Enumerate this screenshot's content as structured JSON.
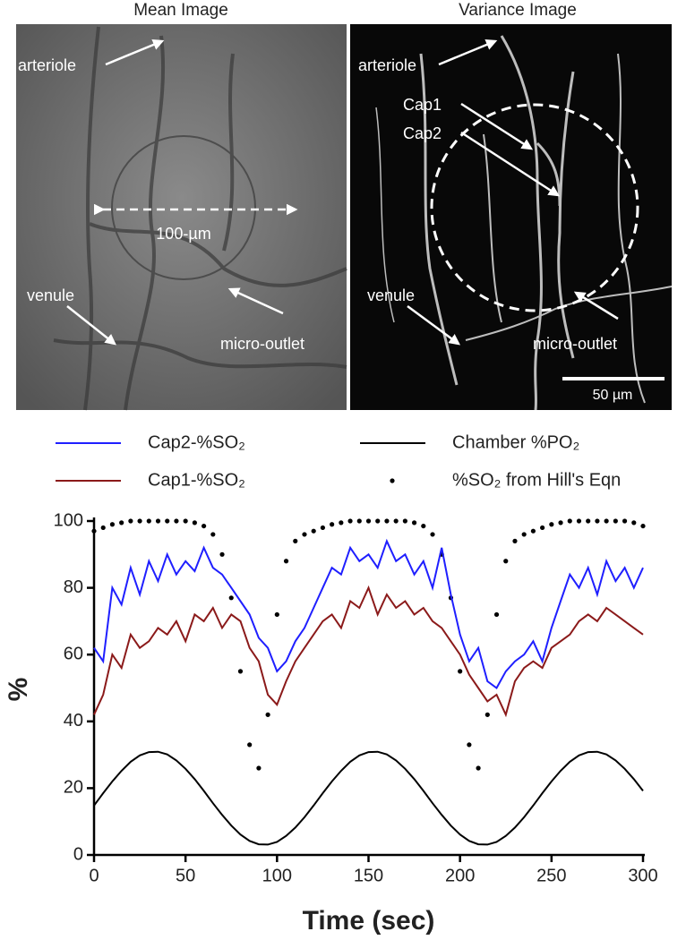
{
  "panels": [
    {
      "title": "Mean Image",
      "labels": [
        "arteriole",
        "100-µm",
        "venule",
        "micro-outlet"
      ]
    },
    {
      "title": "Variance Image",
      "labels": [
        "arteriole",
        "Cap1",
        "Cap2",
        "venule",
        "micro-outlet",
        "50 µm"
      ]
    }
  ],
  "chart_data": {
    "type": "line",
    "xlabel": "Time (sec)",
    "ylabel": "%",
    "xlim": [
      0,
      300
    ],
    "xticks": [
      0,
      50,
      100,
      150,
      200,
      250,
      300
    ],
    "ylim": [
      0,
      100
    ],
    "yticks": [
      0,
      20,
      40,
      60,
      80,
      100
    ],
    "x": [
      0,
      5,
      10,
      15,
      20,
      25,
      30,
      35,
      40,
      45,
      50,
      55,
      60,
      65,
      70,
      75,
      80,
      85,
      90,
      95,
      100,
      105,
      110,
      115,
      120,
      125,
      130,
      135,
      140,
      145,
      150,
      155,
      160,
      165,
      170,
      175,
      180,
      185,
      190,
      195,
      200,
      205,
      210,
      215,
      220,
      225,
      230,
      235,
      240,
      245,
      250,
      255,
      260,
      265,
      270,
      275,
      280,
      285,
      290,
      295,
      300
    ],
    "series": [
      {
        "name": "Cap2-%SO₂",
        "color": "#1f1fff",
        "style": "line",
        "values": [
          62,
          58,
          80,
          75,
          86,
          78,
          88,
          82,
          90,
          84,
          88,
          85,
          92,
          86,
          84,
          80,
          76,
          72,
          65,
          62,
          55,
          58,
          64,
          68,
          74,
          80,
          86,
          84,
          92,
          88,
          90,
          86,
          94,
          88,
          90,
          84,
          88,
          80,
          92,
          78,
          66,
          58,
          62,
          52,
          50,
          55,
          58,
          60,
          64,
          58,
          68,
          76,
          84,
          80,
          86,
          78,
          88,
          82,
          86,
          80,
          86
        ]
      },
      {
        "name": "Cap1-%SO₂",
        "color": "#8b1a1a",
        "style": "line",
        "values": [
          42,
          48,
          60,
          56,
          66,
          62,
          64,
          68,
          66,
          70,
          64,
          72,
          70,
          74,
          68,
          72,
          70,
          62,
          58,
          48,
          45,
          52,
          58,
          62,
          66,
          70,
          72,
          68,
          76,
          74,
          80,
          72,
          78,
          74,
          76,
          72,
          74,
          70,
          68,
          64,
          60,
          54,
          50,
          46,
          48,
          42,
          52,
          56,
          58,
          56,
          62,
          64,
          66,
          70,
          72,
          70,
          74,
          72,
          70,
          68,
          66
        ]
      },
      {
        "name": "Chamber %PO₂",
        "color": "#000000",
        "style": "line",
        "values": [
          14.8,
          18.5,
          22.0,
          25.2,
          27.9,
          29.8,
          30.8,
          30.9,
          30.1,
          28.3,
          25.8,
          22.7,
          19.2,
          15.5,
          12.0,
          8.8,
          6.1,
          4.2,
          3.2,
          3.1,
          3.9,
          5.7,
          8.2,
          11.3,
          14.8,
          18.5,
          22.0,
          25.2,
          27.9,
          29.8,
          30.8,
          30.9,
          30.1,
          28.3,
          25.8,
          22.7,
          19.2,
          15.5,
          12.0,
          8.8,
          6.1,
          4.2,
          3.2,
          3.1,
          3.9,
          5.7,
          8.2,
          11.3,
          14.8,
          18.5,
          22.0,
          25.2,
          27.9,
          29.8,
          30.8,
          30.9,
          30.1,
          28.3,
          25.8,
          22.7,
          19.2
        ]
      },
      {
        "name": "%SO₂ from Hill's Eqn",
        "color": "#000000",
        "style": "dots",
        "values": [
          97,
          98,
          99,
          99.5,
          100,
          100,
          100,
          100,
          100,
          100,
          100,
          99.5,
          98.5,
          96,
          90,
          77,
          55,
          33,
          26,
          42,
          72,
          88,
          94,
          96,
          97,
          98,
          99,
          99.5,
          100,
          100,
          100,
          100,
          100,
          100,
          100,
          99.5,
          98.5,
          96,
          90,
          77,
          55,
          33,
          26,
          42,
          72,
          88,
          94,
          96,
          97,
          98,
          99,
          99.5,
          100,
          100,
          100,
          100,
          100,
          100,
          100,
          99.5,
          98.5
        ]
      }
    ]
  }
}
